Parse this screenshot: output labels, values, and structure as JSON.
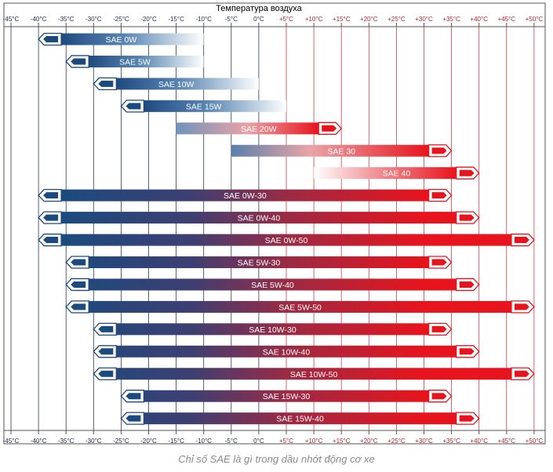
{
  "chart_data": {
    "type": "bar",
    "title": "Температура воздуха",
    "xlabel": "",
    "ylabel": "",
    "x_ticks": [
      -45,
      -40,
      -35,
      -30,
      -25,
      -20,
      -15,
      -10,
      -5,
      0,
      5,
      10,
      15,
      20,
      25,
      30,
      35,
      40,
      45,
      50
    ],
    "x_tick_labels": [
      "-45°C",
      "-40°C",
      "-35°C",
      "-30°C",
      "-25°C",
      "-20°C",
      "-15°C",
      "-10°C",
      "-5°C",
      "0°C",
      "+5°C",
      "+10°C",
      "+15°C",
      "+20°C",
      "+25°C",
      "+30°C",
      "+35°C",
      "+40°C",
      "+45°C",
      "+50°C"
    ],
    "xlim": [
      -45,
      50
    ],
    "grid": true,
    "cold_color": "#1c4a7e",
    "hot_color": "#e8141d",
    "tick_color_cold": "#1b2a44",
    "tick_color_hot": "#b0242d",
    "categories": [
      "SAE 0W",
      "SAE 5W",
      "SAE 10W",
      "SAE 15W",
      "SAE 20W",
      "SAE 30",
      "SAE 40",
      "SAE 0W-30",
      "SAE 0W-40",
      "SAE 0W-50",
      "SAE 5W-30",
      "SAE 5W-40",
      "SAE 5W-50",
      "SAE 10W-30",
      "SAE 10W-40",
      "SAE 10W-50",
      "SAE 15W-30",
      "SAE 15W-40"
    ],
    "series": [
      {
        "values": [
          [
            -40,
            -10
          ],
          [
            -35,
            -10
          ],
          [
            -30,
            0
          ],
          [
            -25,
            5
          ],
          [
            -15,
            15
          ],
          [
            -5,
            35
          ],
          [
            10,
            40
          ],
          [
            -40,
            35
          ],
          [
            -40,
            40
          ],
          [
            -40,
            50
          ],
          [
            -35,
            35
          ],
          [
            -35,
            40
          ],
          [
            -35,
            50
          ],
          [
            -30,
            35
          ],
          [
            -30,
            40
          ],
          [
            -30,
            50
          ],
          [
            -25,
            35
          ],
          [
            -25,
            40
          ]
        ]
      }
    ],
    "cold_arrow": [
      true,
      true,
      true,
      true,
      false,
      false,
      false,
      true,
      true,
      true,
      true,
      true,
      true,
      true,
      true,
      true,
      true,
      true
    ],
    "hot_arrow": [
      false,
      false,
      false,
      false,
      true,
      true,
      true,
      true,
      true,
      true,
      true,
      true,
      true,
      true,
      true,
      true,
      true,
      true
    ]
  },
  "caption": "Chỉ số SAE là gì trong dầu nhớt động cơ xe"
}
